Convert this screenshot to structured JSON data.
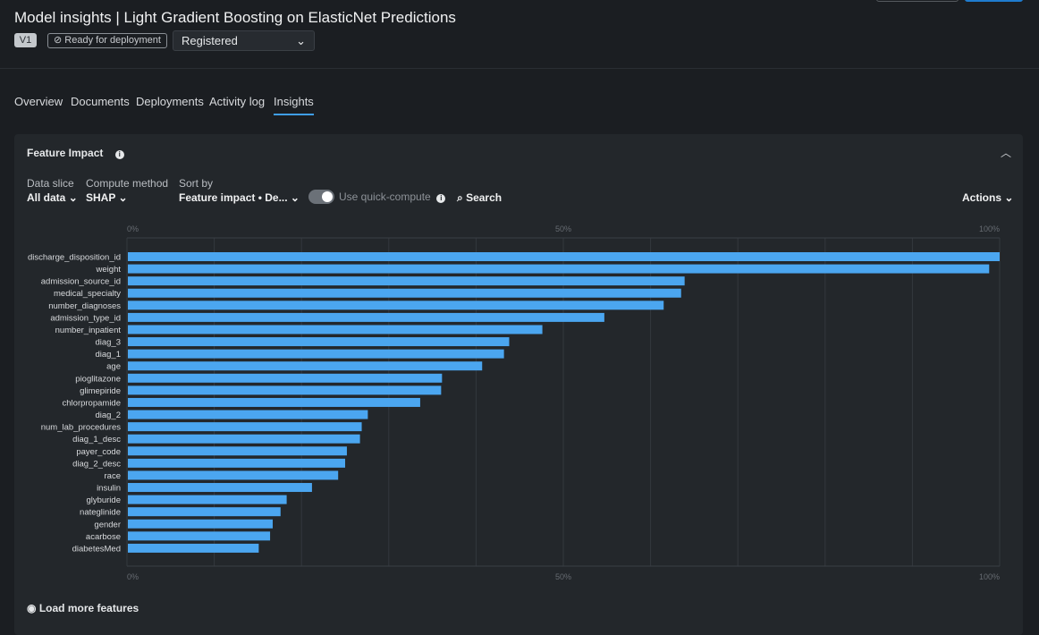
{
  "header": {
    "title": "Model insights | Light Gradient Boosting on ElasticNet Predictions",
    "version": "V1",
    "deploy_status": "Ready for deployment",
    "registration": "Registered"
  },
  "tabs": [
    "Overview",
    "Documents",
    "Deployments",
    "Activity log",
    "Insights"
  ],
  "active_tab": "Insights",
  "panel": {
    "title": "Feature Impact",
    "data_slice_label": "Data slice",
    "data_slice_value": "All data",
    "compute_label": "Compute method",
    "compute_value": "SHAP",
    "sort_label": "Sort by",
    "sort_value": "Feature impact • De...",
    "quick_compute_label": "Use quick-compute",
    "quick_compute_on": true,
    "search_label": "Search",
    "actions_label": "Actions",
    "load_more": "Load more features"
  },
  "colors": {
    "bar": "#4ba6f0",
    "accent": "#3f9ee8"
  },
  "chart_data": {
    "type": "bar",
    "orientation": "horizontal",
    "xlim": [
      0,
      100
    ],
    "grid": true,
    "ticks": [
      "0%",
      "50%",
      "100%"
    ],
    "categories": [
      "discharge_disposition_id",
      "weight",
      "admission_source_id",
      "medical_specialty",
      "number_diagnoses",
      "admission_type_id",
      "number_inpatient",
      "diag_3",
      "diag_1",
      "age",
      "pioglitazone",
      "glimepiride",
      "chlorpropamide",
      "diag_2",
      "num_lab_procedures",
      "diag_1_desc",
      "payer_code",
      "diag_2_desc",
      "race",
      "insulin",
      "glyburide",
      "nateglinide",
      "gender",
      "acarbose",
      "diabetesMed"
    ],
    "values": [
      100,
      98.8,
      63.9,
      63.5,
      61.5,
      54.7,
      47.6,
      43.8,
      43.2,
      40.7,
      36.1,
      36.0,
      33.6,
      27.6,
      26.9,
      26.7,
      25.2,
      25.0,
      24.2,
      21.2,
      18.3,
      17.6,
      16.7,
      16.4,
      15.1
    ]
  }
}
